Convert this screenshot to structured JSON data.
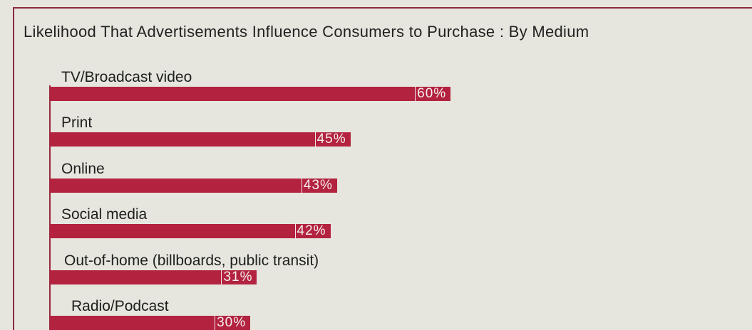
{
  "chart_data": {
    "type": "bar",
    "orientation": "horizontal",
    "title": "Likelihood That Advertisements Influence Consumers to Purchase : By Medium",
    "categories": [
      "TV/Broadcast video",
      "Print",
      "Online",
      "Social media",
      "Out-of-home (billboards, public transit)",
      "Radio/Podcast"
    ],
    "values": [
      60,
      45,
      43,
      42,
      31,
      30
    ],
    "value_labels": [
      "60%",
      "45%",
      "43%",
      "42%",
      "31%",
      "30%"
    ],
    "color": "#b3223f"
  }
}
